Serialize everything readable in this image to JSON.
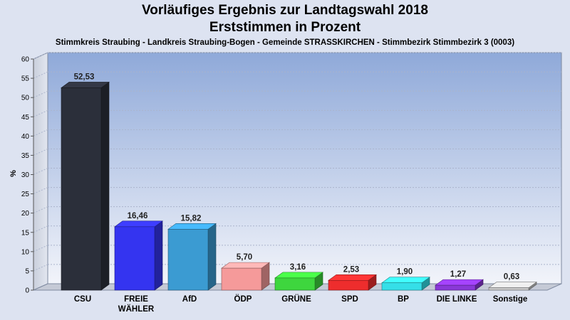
{
  "chart_data": {
    "type": "bar",
    "title": "Vorläufiges Ergebnis zur Landtagswahl 2018",
    "title_line2": "Erststimmen in Prozent",
    "subtitle": "Stimmkreis Straubing - Landkreis Straubing-Bogen - Gemeinde STRASSKIRCHEN - Stimmbezirk Stimmbezirk 3 (0003)",
    "ylabel": "%",
    "xlabel": "",
    "ylim": [
      0,
      60
    ],
    "yticks": [
      0,
      5,
      10,
      15,
      20,
      25,
      30,
      35,
      40,
      45,
      50,
      55,
      60
    ],
    "grid": true,
    "categories": [
      [
        "CSU"
      ],
      [
        "FREIE",
        "WÄHLER"
      ],
      [
        "AfD"
      ],
      [
        "ÖDP"
      ],
      [
        "GRÜNE"
      ],
      [
        "SPD"
      ],
      [
        "BP"
      ],
      [
        "DIE LINKE"
      ],
      [
        "Sonstige"
      ]
    ],
    "values": [
      52.53,
      16.46,
      15.82,
      5.7,
      3.16,
      2.53,
      1.9,
      1.27,
      0.63
    ],
    "value_labels": [
      "52,53",
      "16,46",
      "15,82",
      "5,70",
      "3,16",
      "2,53",
      "1,90",
      "1,27",
      "0,63"
    ],
    "colors": [
      "#2b2f3a",
      "#3434f0",
      "#3b9bd2",
      "#f59a9a",
      "#3ed63e",
      "#ee2d2d",
      "#35dfe8",
      "#8a38d8",
      "#c8c8c8"
    ]
  }
}
